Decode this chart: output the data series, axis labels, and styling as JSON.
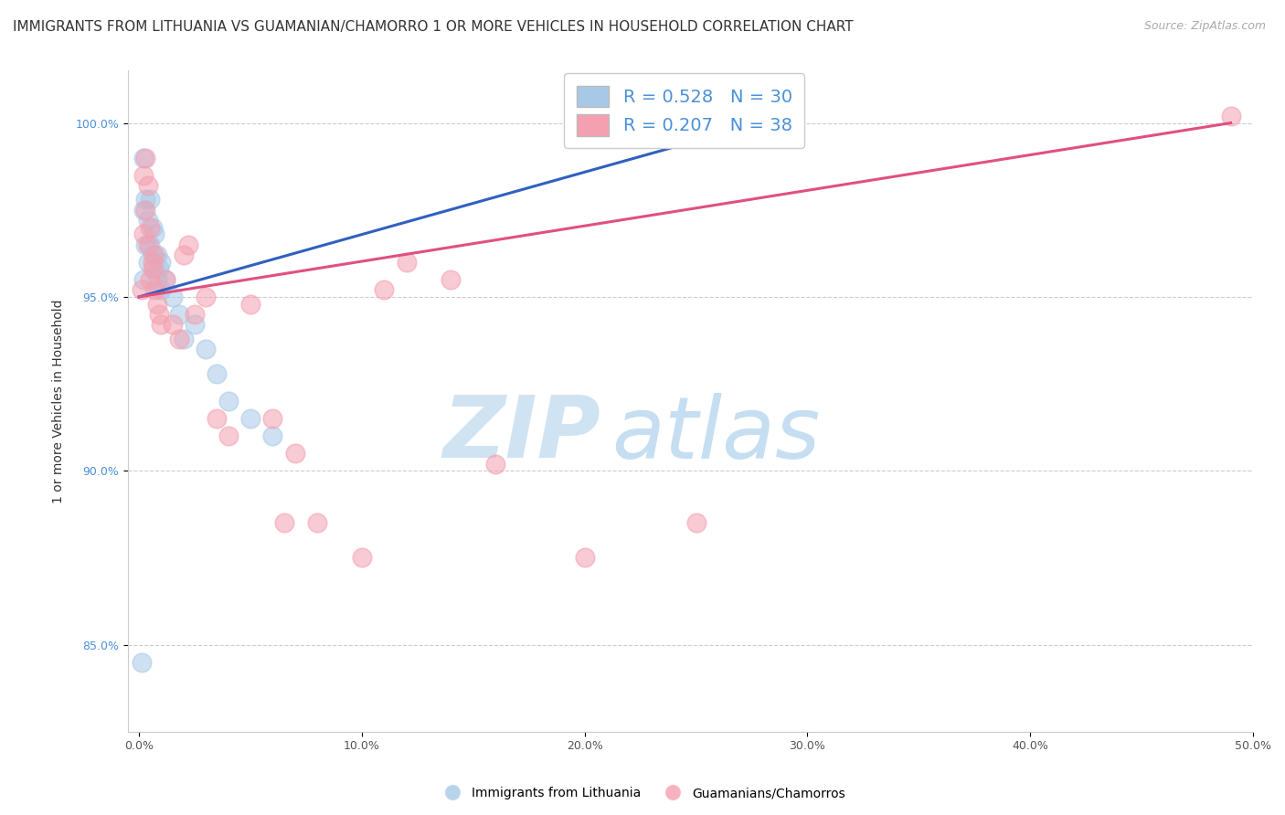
{
  "title": "IMMIGRANTS FROM LITHUANIA VS GUAMANIAN/CHAMORRO 1 OR MORE VEHICLES IN HOUSEHOLD CORRELATION CHART",
  "source": "Source: ZipAtlas.com",
  "ylabel": "1 or more Vehicles in Household",
  "xlabel": "",
  "xlim": [
    -0.005,
    0.5
  ],
  "ylim": [
    82.5,
    101.5
  ],
  "yticks": [
    85.0,
    90.0,
    95.0,
    100.0
  ],
  "ytick_labels": [
    "85.0%",
    "90.0%",
    "95.0%",
    "100.0%"
  ],
  "xticks": [
    0.0,
    0.1,
    0.2,
    0.3,
    0.4,
    0.5
  ],
  "xtick_labels": [
    "0.0%",
    "10.0%",
    "20.0%",
    "30.0%",
    "40.0%",
    "50.0%"
  ],
  "blue_R": 0.528,
  "blue_N": 30,
  "pink_R": 0.207,
  "pink_N": 38,
  "blue_color": "#a8c8e8",
  "pink_color": "#f4a0b0",
  "blue_line_color": "#3060c0",
  "pink_line_color": "#e05080",
  "legend_blue_fill": "#a8c8e8",
  "legend_pink_fill": "#f4a0b0",
  "blue_scatter_x": [
    0.001,
    0.002,
    0.002,
    0.003,
    0.003,
    0.004,
    0.004,
    0.005,
    0.005,
    0.006,
    0.006,
    0.007,
    0.007,
    0.008,
    0.008,
    0.009,
    0.01,
    0.01,
    0.012,
    0.015,
    0.018,
    0.02,
    0.025,
    0.03,
    0.035,
    0.04,
    0.05,
    0.06,
    0.002,
    0.29
  ],
  "blue_scatter_y": [
    84.5,
    97.5,
    99.0,
    97.8,
    96.5,
    96.0,
    97.2,
    96.5,
    97.8,
    96.2,
    97.0,
    96.8,
    95.8,
    95.5,
    96.2,
    95.8,
    96.0,
    95.2,
    95.5,
    95.0,
    94.5,
    93.8,
    94.2,
    93.5,
    92.8,
    92.0,
    91.5,
    91.0,
    95.5,
    100.2
  ],
  "pink_scatter_x": [
    0.001,
    0.002,
    0.002,
    0.003,
    0.003,
    0.004,
    0.004,
    0.005,
    0.005,
    0.006,
    0.006,
    0.007,
    0.007,
    0.008,
    0.009,
    0.01,
    0.012,
    0.015,
    0.018,
    0.02,
    0.022,
    0.025,
    0.03,
    0.035,
    0.04,
    0.05,
    0.06,
    0.065,
    0.07,
    0.08,
    0.1,
    0.11,
    0.12,
    0.14,
    0.16,
    0.2,
    0.25,
    0.49
  ],
  "pink_scatter_y": [
    95.2,
    96.8,
    98.5,
    97.5,
    99.0,
    98.2,
    96.5,
    95.5,
    97.0,
    96.0,
    95.8,
    96.2,
    95.2,
    94.8,
    94.5,
    94.2,
    95.5,
    94.2,
    93.8,
    96.2,
    96.5,
    94.5,
    95.0,
    91.5,
    91.0,
    94.8,
    91.5,
    88.5,
    90.5,
    88.5,
    87.5,
    95.2,
    96.0,
    95.5,
    90.2,
    87.5,
    88.5,
    100.2
  ],
  "watermark_zip": "ZIP",
  "watermark_atlas": "atlas",
  "background_color": "#ffffff",
  "grid_color": "#cccccc",
  "title_fontsize": 11,
  "axis_label_fontsize": 10,
  "tick_fontsize": 9,
  "legend_fontsize": 14,
  "source_fontsize": 9
}
